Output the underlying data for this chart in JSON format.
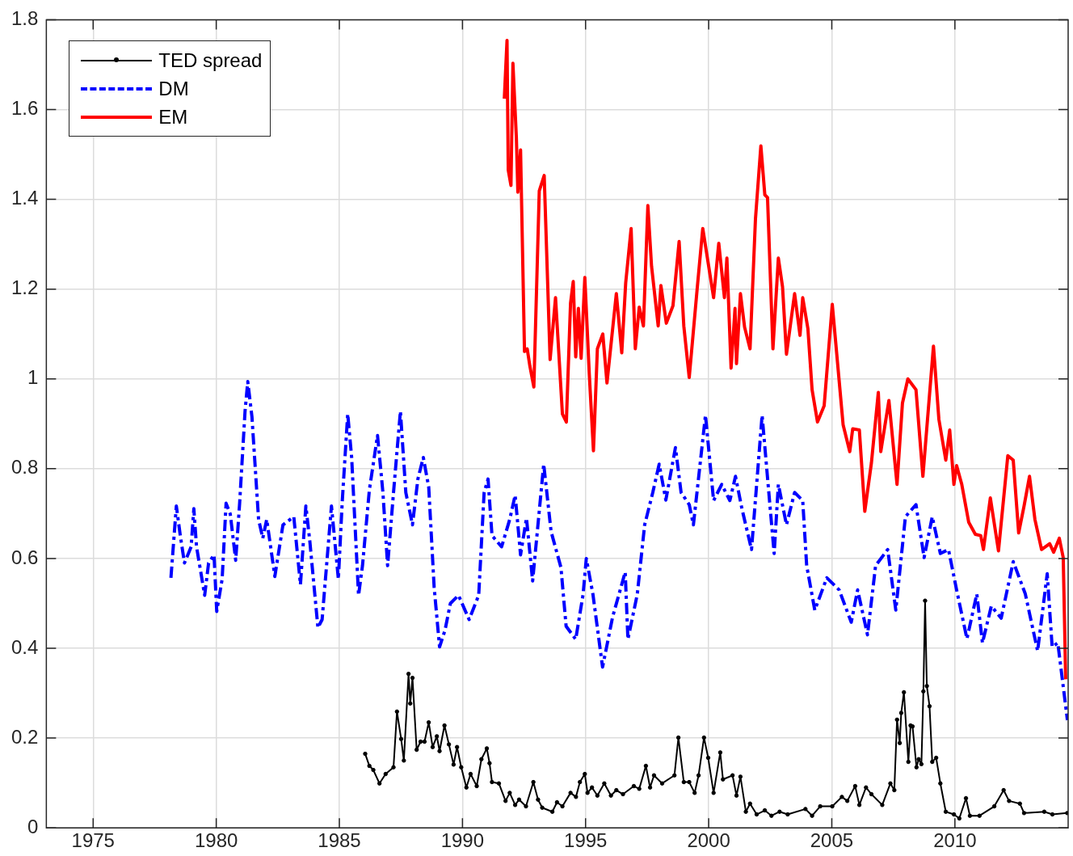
{
  "chart_data": {
    "type": "line",
    "xlim": [
      1973.1,
      2014.6
    ],
    "xticks": [
      1975,
      1980,
      1985,
      1990,
      1995,
      2000,
      2005,
      2010
    ],
    "ylim": [
      0,
      1.8
    ],
    "yticks": [
      0,
      0.2,
      0.4,
      0.6,
      0.8,
      1,
      1.2,
      1.4,
      1.6,
      1.8
    ],
    "grid": true,
    "legend": "top left",
    "series": [
      {
        "name": "TED spread",
        "color": "#000000",
        "marker": "circle",
        "line_style": "solid",
        "x": [
          1986.05,
          1986.22,
          1986.38,
          1986.63,
          1986.88,
          1987.2,
          1987.34,
          1987.51,
          1987.62,
          1987.81,
          1987.88,
          1987.97,
          1988.14,
          1988.3,
          1988.46,
          1988.63,
          1988.79,
          1988.96,
          1989.07,
          1989.27,
          1989.45,
          1989.64,
          1989.78,
          1989.95,
          1990.16,
          1990.33,
          1990.58,
          1990.77,
          1990.99,
          1991.1,
          1991.2,
          1991.48,
          1991.75,
          1991.92,
          1992.14,
          1992.3,
          1992.58,
          1992.88,
          1993.07,
          1993.24,
          1993.65,
          1993.84,
          1994.06,
          1994.39,
          1994.61,
          1994.77,
          1994.97,
          1995.08,
          1995.26,
          1995.48,
          1995.76,
          1996.03,
          1996.25,
          1996.52,
          1996.96,
          1997.18,
          1997.45,
          1997.62,
          1997.78,
          1998.11,
          1998.61,
          1998.77,
          1998.99,
          1999.21,
          1999.43,
          1999.59,
          1999.81,
          1999.98,
          2000.2,
          2000.47,
          2000.58,
          2000.97,
          2001.13,
          2001.29,
          2001.51,
          2001.68,
          2001.95,
          2002.28,
          2002.55,
          2002.88,
          2003.21,
          2003.93,
          2004.2,
          2004.53,
          2005.02,
          2005.41,
          2005.63,
          2005.95,
          2006.12,
          2006.39,
          2006.61,
          2007.05,
          2007.38,
          2007.54,
          2007.65,
          2007.76,
          2007.82,
          2007.93,
          2008.11,
          2008.2,
          2008.28,
          2008.44,
          2008.53,
          2008.64,
          2008.72,
          2008.79,
          2008.86,
          2008.97,
          2009.08,
          2009.24,
          2009.41,
          2009.63,
          2009.96,
          2010.18,
          2010.45,
          2010.61,
          2011.0,
          2011.6,
          2011.98,
          2012.2,
          2012.64,
          2012.81,
          2013.63,
          2013.96,
          2014.56
        ],
        "values": [
          0.165,
          0.138,
          0.129,
          0.099,
          0.12,
          0.135,
          0.259,
          0.198,
          0.15,
          0.343,
          0.277,
          0.334,
          0.174,
          0.192,
          0.192,
          0.235,
          0.18,
          0.204,
          0.171,
          0.228,
          0.186,
          0.141,
          0.18,
          0.135,
          0.09,
          0.12,
          0.093,
          0.153,
          0.177,
          0.144,
          0.102,
          0.099,
          0.06,
          0.078,
          0.051,
          0.063,
          0.048,
          0.102,
          0.063,
          0.045,
          0.036,
          0.057,
          0.048,
          0.078,
          0.069,
          0.102,
          0.12,
          0.078,
          0.09,
          0.072,
          0.099,
          0.072,
          0.084,
          0.075,
          0.093,
          0.087,
          0.138,
          0.09,
          0.117,
          0.099,
          0.117,
          0.201,
          0.102,
          0.102,
          0.078,
          0.117,
          0.201,
          0.156,
          0.078,
          0.168,
          0.108,
          0.117,
          0.072,
          0.114,
          0.036,
          0.054,
          0.03,
          0.039,
          0.027,
          0.036,
          0.03,
          0.042,
          0.027,
          0.048,
          0.048,
          0.069,
          0.06,
          0.093,
          0.051,
          0.09,
          0.075,
          0.051,
          0.099,
          0.084,
          0.241,
          0.189,
          0.256,
          0.302,
          0.147,
          0.228,
          0.226,
          0.135,
          0.153,
          0.142,
          0.304,
          0.506,
          0.316,
          0.271,
          0.147,
          0.156,
          0.099,
          0.036,
          0.03,
          0.021,
          0.066,
          0.027,
          0.027,
          0.048,
          0.084,
          0.06,
          0.054,
          0.033,
          0.036,
          0.03,
          0.033
        ]
      },
      {
        "name": "DM",
        "color": "#0000ff",
        "marker": "none",
        "line_style": "dashed",
        "x": [
          1978.16,
          1978.38,
          1978.54,
          1978.71,
          1978.98,
          1979.09,
          1979.2,
          1979.53,
          1979.69,
          1979.91,
          1980.02,
          1980.24,
          1980.4,
          1980.57,
          1980.79,
          1980.95,
          1981.17,
          1981.28,
          1981.45,
          1981.72,
          1981.89,
          1982.05,
          1982.16,
          1982.38,
          1982.71,
          1983.15,
          1983.42,
          1983.64,
          1983.8,
          1984.13,
          1984.3,
          1984.68,
          1984.96,
          1985.12,
          1985.34,
          1985.5,
          1985.78,
          1985.94,
          1986.22,
          1986.55,
          1986.77,
          1986.96,
          1987.2,
          1987.48,
          1987.7,
          1987.97,
          1988.19,
          1988.41,
          1988.63,
          1988.85,
          1989.07,
          1989.29,
          1989.51,
          1989.84,
          1990.27,
          1990.66,
          1990.88,
          1991.04,
          1991.2,
          1991.59,
          1991.92,
          1992.14,
          1992.36,
          1992.6,
          1992.85,
          1993.3,
          1993.6,
          1994.0,
          1994.21,
          1994.6,
          1994.9,
          1995.03,
          1995.3,
          1995.69,
          1996.1,
          1996.61,
          1996.72,
          1997.1,
          1997.4,
          1997.73,
          1997.99,
          1998.26,
          1998.65,
          1998.88,
          1999.21,
          1999.38,
          1999.87,
          2000.2,
          2000.53,
          2000.86,
          2001.09,
          2001.35,
          2001.74,
          2002.17,
          2002.5,
          2002.66,
          2002.83,
          2003.16,
          2003.49,
          2003.82,
          2003.98,
          2004.31,
          2004.8,
          2005.3,
          2005.79,
          2006.05,
          2006.45,
          2006.78,
          2007.27,
          2007.6,
          2007.99,
          2008.42,
          2008.75,
          2009.08,
          2009.41,
          2009.74,
          2010.07,
          2010.49,
          2010.89,
          2011.12,
          2011.48,
          2011.88,
          2012.37,
          2012.86,
          2013.36,
          2013.75,
          2013.95,
          2014.18,
          2014.57
        ],
        "values": [
          0.557,
          0.717,
          0.651,
          0.59,
          0.626,
          0.711,
          0.626,
          0.518,
          0.59,
          0.608,
          0.482,
          0.554,
          0.723,
          0.699,
          0.596,
          0.723,
          0.928,
          0.994,
          0.916,
          0.687,
          0.645,
          0.687,
          0.645,
          0.56,
          0.675,
          0.693,
          0.542,
          0.717,
          0.639,
          0.446,
          0.464,
          0.717,
          0.554,
          0.729,
          0.922,
          0.825,
          0.518,
          0.584,
          0.753,
          0.874,
          0.747,
          0.584,
          0.747,
          0.928,
          0.747,
          0.675,
          0.777,
          0.825,
          0.759,
          0.536,
          0.403,
          0.44,
          0.5,
          0.518,
          0.464,
          0.518,
          0.747,
          0.777,
          0.651,
          0.626,
          0.687,
          0.741,
          0.608,
          0.69,
          0.55,
          0.81,
          0.66,
          0.58,
          0.449,
          0.42,
          0.52,
          0.6,
          0.52,
          0.358,
          0.47,
          0.57,
          0.42,
          0.52,
          0.675,
          0.747,
          0.81,
          0.73,
          0.847,
          0.747,
          0.72,
          0.675,
          0.919,
          0.729,
          0.765,
          0.729,
          0.783,
          0.711,
          0.62,
          0.919,
          0.711,
          0.611,
          0.765,
          0.675,
          0.747,
          0.729,
          0.584,
          0.485,
          0.557,
          0.53,
          0.458,
          0.53,
          0.43,
          0.584,
          0.62,
          0.485,
          0.693,
          0.72,
          0.602,
          0.693,
          0.611,
          0.62,
          0.53,
          0.421,
          0.521,
          0.412,
          0.494,
          0.467,
          0.593,
          0.521,
          0.394,
          0.566,
          0.403,
          0.412,
          0.24
        ]
      },
      {
        "name": "EM",
        "color": "#ff0000",
        "marker": "none",
        "line_style": "solid",
        "x": [
          1991.7,
          1991.81,
          1991.86,
          1991.97,
          1992.05,
          1992.19,
          1992.25,
          1992.36,
          1992.52,
          1992.63,
          1992.74,
          1992.9,
          1993.12,
          1993.32,
          1993.56,
          1993.78,
          1994.06,
          1994.22,
          1994.39,
          1994.5,
          1994.6,
          1994.71,
          1994.82,
          1994.97,
          1995.15,
          1995.32,
          1995.48,
          1995.7,
          1995.87,
          1996.25,
          1996.47,
          1996.63,
          1996.85,
          1997.02,
          1997.18,
          1997.35,
          1997.53,
          1997.68,
          1997.95,
          1998.06,
          1998.28,
          1998.55,
          1998.8,
          1998.99,
          1999.21,
          1999.54,
          1999.76,
          2000.2,
          2000.41,
          2000.64,
          2000.74,
          2000.91,
          2001.07,
          2001.13,
          2001.29,
          2001.46,
          2001.68,
          2001.9,
          2002.12,
          2002.28,
          2002.39,
          2002.61,
          2002.83,
          2003.0,
          2003.16,
          2003.49,
          2003.71,
          2003.82,
          2004.03,
          2004.2,
          2004.42,
          2004.69,
          2005.02,
          2005.46,
          2005.73,
          2005.85,
          2006.12,
          2006.34,
          2006.61,
          2006.89,
          2006.99,
          2007.32,
          2007.65,
          2007.87,
          2008.09,
          2008.42,
          2008.7,
          2009.13,
          2009.35,
          2009.63,
          2009.79,
          2009.96,
          2010.07,
          2010.28,
          2010.56,
          2010.83,
          2011.05,
          2011.16,
          2011.44,
          2011.77,
          2012.15,
          2012.37,
          2012.59,
          2012.81,
          2013.03,
          2013.25,
          2013.52,
          2013.85,
          2014.01,
          2014.24,
          2014.4,
          2014.5
        ],
        "values": [
          1.624,
          1.754,
          1.465,
          1.431,
          1.703,
          1.537,
          1.416,
          1.51,
          1.061,
          1.067,
          1.028,
          0.982,
          1.419,
          1.453,
          1.043,
          1.181,
          0.922,
          0.904,
          1.169,
          1.217,
          1.049,
          1.157,
          1.046,
          1.226,
          1.012,
          0.84,
          1.067,
          1.1,
          0.991,
          1.19,
          1.058,
          1.214,
          1.335,
          1.067,
          1.16,
          1.118,
          1.386,
          1.251,
          1.118,
          1.208,
          1.124,
          1.163,
          1.306,
          1.118,
          1.003,
          1.205,
          1.335,
          1.181,
          1.302,
          1.181,
          1.269,
          1.024,
          1.157,
          1.034,
          1.19,
          1.115,
          1.067,
          1.356,
          1.519,
          1.41,
          1.404,
          1.067,
          1.269,
          1.205,
          1.055,
          1.19,
          1.097,
          1.181,
          1.112,
          0.976,
          0.904,
          0.94,
          1.166,
          0.898,
          0.838,
          0.889,
          0.886,
          0.705,
          0.813,
          0.97,
          0.838,
          0.952,
          0.765,
          0.946,
          1.0,
          0.976,
          0.783,
          1.073,
          0.91,
          0.819,
          0.886,
          0.765,
          0.807,
          0.765,
          0.681,
          0.654,
          0.651,
          0.62,
          0.735,
          0.617,
          0.829,
          0.819,
          0.657,
          0.717,
          0.783,
          0.687,
          0.62,
          0.633,
          0.614,
          0.645,
          0.602,
          0.331
        ]
      }
    ]
  }
}
